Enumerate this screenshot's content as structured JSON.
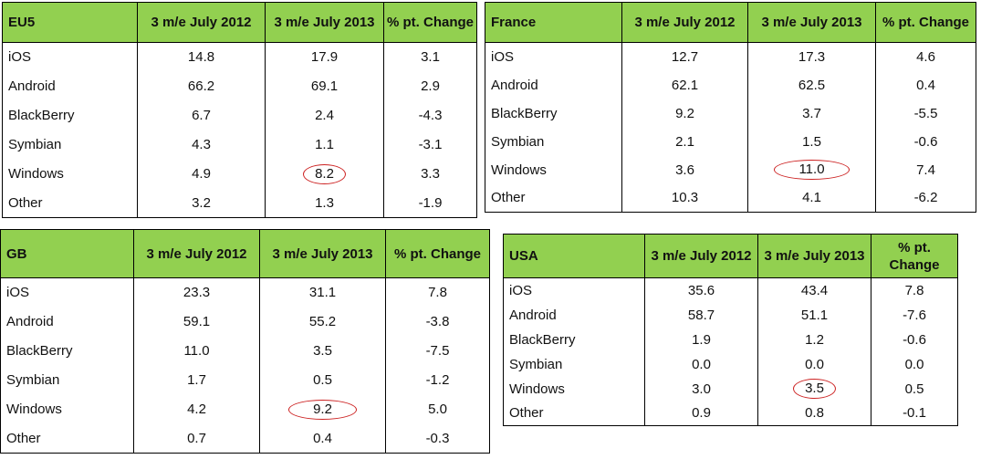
{
  "chart_data": [
    {
      "type": "table",
      "region": "EU5",
      "columns": [
        "3 m/e July 2012",
        "3 m/e July 2013",
        "% pt. Change"
      ],
      "rows": [
        {
          "os": "iOS",
          "v2012": "14.8",
          "v2013": "17.9",
          "change": "3.1"
        },
        {
          "os": "Android",
          "v2012": "66.2",
          "v2013": "69.1",
          "change": "2.9"
        },
        {
          "os": "BlackBerry",
          "v2012": "6.7",
          "v2013": "2.4",
          "change": "-4.3"
        },
        {
          "os": "Symbian",
          "v2012": "4.3",
          "v2013": "1.1",
          "change": "-3.1"
        },
        {
          "os": "Windows",
          "v2012": "4.9",
          "v2013": "8.2",
          "change": "3.3"
        },
        {
          "os": "Other",
          "v2012": "3.2",
          "v2013": "1.3",
          "change": "-1.9"
        }
      ],
      "highlighted_row": "Windows"
    },
    {
      "type": "table",
      "region": "France",
      "columns": [
        "3 m/e July 2012",
        "3 m/e July 2013",
        "% pt. Change"
      ],
      "rows": [
        {
          "os": "iOS",
          "v2012": "12.7",
          "v2013": "17.3",
          "change": "4.6"
        },
        {
          "os": "Android",
          "v2012": "62.1",
          "v2013": "62.5",
          "change": "0.4"
        },
        {
          "os": "BlackBerry",
          "v2012": "9.2",
          "v2013": "3.7",
          "change": "-5.5"
        },
        {
          "os": "Symbian",
          "v2012": "2.1",
          "v2013": "1.5",
          "change": "-0.6"
        },
        {
          "os": "Windows",
          "v2012": "3.6",
          "v2013": "11.0",
          "change": "7.4"
        },
        {
          "os": "Other",
          "v2012": "10.3",
          "v2013": "4.1",
          "change": "-6.2"
        }
      ],
      "highlighted_row": "Windows"
    },
    {
      "type": "table",
      "region": "GB",
      "columns": [
        "3 m/e July 2012",
        "3 m/e July 2013",
        "% pt. Change"
      ],
      "rows": [
        {
          "os": "iOS",
          "v2012": "23.3",
          "v2013": "31.1",
          "change": "7.8"
        },
        {
          "os": "Android",
          "v2012": "59.1",
          "v2013": "55.2",
          "change": "-3.8"
        },
        {
          "os": "BlackBerry",
          "v2012": "11.0",
          "v2013": "3.5",
          "change": "-7.5"
        },
        {
          "os": "Symbian",
          "v2012": "1.7",
          "v2013": "0.5",
          "change": "-1.2"
        },
        {
          "os": "Windows",
          "v2012": "4.2",
          "v2013": "9.2",
          "change": "5.0"
        },
        {
          "os": "Other",
          "v2012": "0.7",
          "v2013": "0.4",
          "change": "-0.3"
        }
      ],
      "highlighted_row": "Windows"
    },
    {
      "type": "table",
      "region": "USA",
      "columns": [
        "3 m/e July 2012",
        "3 m/e July 2013",
        "% pt. Change"
      ],
      "rows": [
        {
          "os": "iOS",
          "v2012": "35.6",
          "v2013": "43.4",
          "change": "7.8"
        },
        {
          "os": "Android",
          "v2012": "58.7",
          "v2013": "51.1",
          "change": "-7.6"
        },
        {
          "os": "BlackBerry",
          "v2012": "1.9",
          "v2013": "1.2",
          "change": "-0.6"
        },
        {
          "os": "Symbian",
          "v2012": "0.0",
          "v2013": "0.0",
          "change": "0.0"
        },
        {
          "os": "Windows",
          "v2012": "3.0",
          "v2013": "3.5",
          "change": "0.5"
        },
        {
          "os": "Other",
          "v2012": "0.9",
          "v2013": "0.8",
          "change": "-0.1"
        }
      ],
      "highlighted_row": "Windows"
    }
  ],
  "colors": {
    "header_bg": "#92d050",
    "highlight_circle": "#cc2020"
  }
}
